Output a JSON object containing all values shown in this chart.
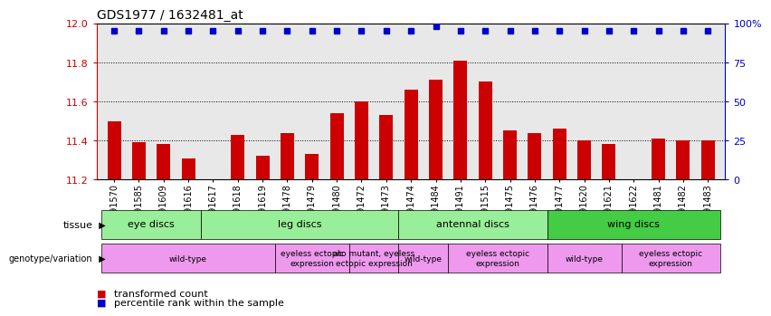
{
  "title": "GDS1977 / 1632481_at",
  "samples": [
    "GSM91570",
    "GSM91585",
    "GSM91609",
    "GSM91616",
    "GSM91617",
    "GSM91618",
    "GSM91619",
    "GSM91478",
    "GSM91479",
    "GSM91480",
    "GSM91472",
    "GSM91473",
    "GSM91474",
    "GSM91484",
    "GSM91491",
    "GSM91515",
    "GSM91475",
    "GSM91476",
    "GSM91477",
    "GSM91620",
    "GSM91621",
    "GSM91622",
    "GSM91481",
    "GSM91482",
    "GSM91483"
  ],
  "bar_values": [
    11.5,
    11.39,
    11.38,
    11.31,
    11.2,
    11.43,
    11.32,
    11.44,
    11.33,
    11.54,
    11.6,
    11.53,
    11.66,
    11.71,
    11.81,
    11.7,
    11.45,
    11.44,
    11.46,
    11.4,
    11.38,
    11.19,
    11.41,
    11.4,
    11.4
  ],
  "percentile_values": [
    95,
    95,
    95,
    95,
    95,
    95,
    95,
    95,
    95,
    95,
    95,
    95,
    95,
    98,
    95,
    95,
    95,
    95,
    95,
    95,
    95,
    95,
    95,
    95,
    95
  ],
  "ylim": [
    11.2,
    12.0
  ],
  "y_ticks": [
    11.2,
    11.4,
    11.6,
    11.8,
    12.0
  ],
  "right_yticks": [
    0,
    25,
    50,
    75,
    100
  ],
  "right_ytick_labels": [
    "0",
    "25",
    "50",
    "75",
    "100%"
  ],
  "bar_color": "#cc0000",
  "percentile_color": "#0000cc",
  "plot_bg_color": "#e8e8e8",
  "tissue_defs": [
    {
      "start": 0,
      "end": 3,
      "label": "eye discs",
      "color": "#99ee99"
    },
    {
      "start": 4,
      "end": 11,
      "label": "leg discs",
      "color": "#99ee99"
    },
    {
      "start": 12,
      "end": 17,
      "label": "antennal discs",
      "color": "#99ee99"
    },
    {
      "start": 18,
      "end": 24,
      "label": "wing discs",
      "color": "#44cc44"
    }
  ],
  "geno_defs": [
    {
      "start": 0,
      "end": 6,
      "label": "wild-type",
      "color": "#ee99ee"
    },
    {
      "start": 7,
      "end": 9,
      "label": "eyeless ectopic\nexpression",
      "color": "#ee99ee"
    },
    {
      "start": 10,
      "end": 11,
      "label": "ato mutant, eyeless\nectopic expression",
      "color": "#ee99ee"
    },
    {
      "start": 12,
      "end": 13,
      "label": "wild-type",
      "color": "#ee99ee"
    },
    {
      "start": 14,
      "end": 17,
      "label": "eyeless ectopic\nexpression",
      "color": "#ee99ee"
    },
    {
      "start": 18,
      "end": 20,
      "label": "wild-type",
      "color": "#ee99ee"
    },
    {
      "start": 21,
      "end": 24,
      "label": "eyeless ectopic\nexpression",
      "color": "#ee99ee"
    }
  ],
  "title_fontsize": 10,
  "tick_fontsize": 7,
  "label_fontsize": 8,
  "annotation_fontsize": 7
}
